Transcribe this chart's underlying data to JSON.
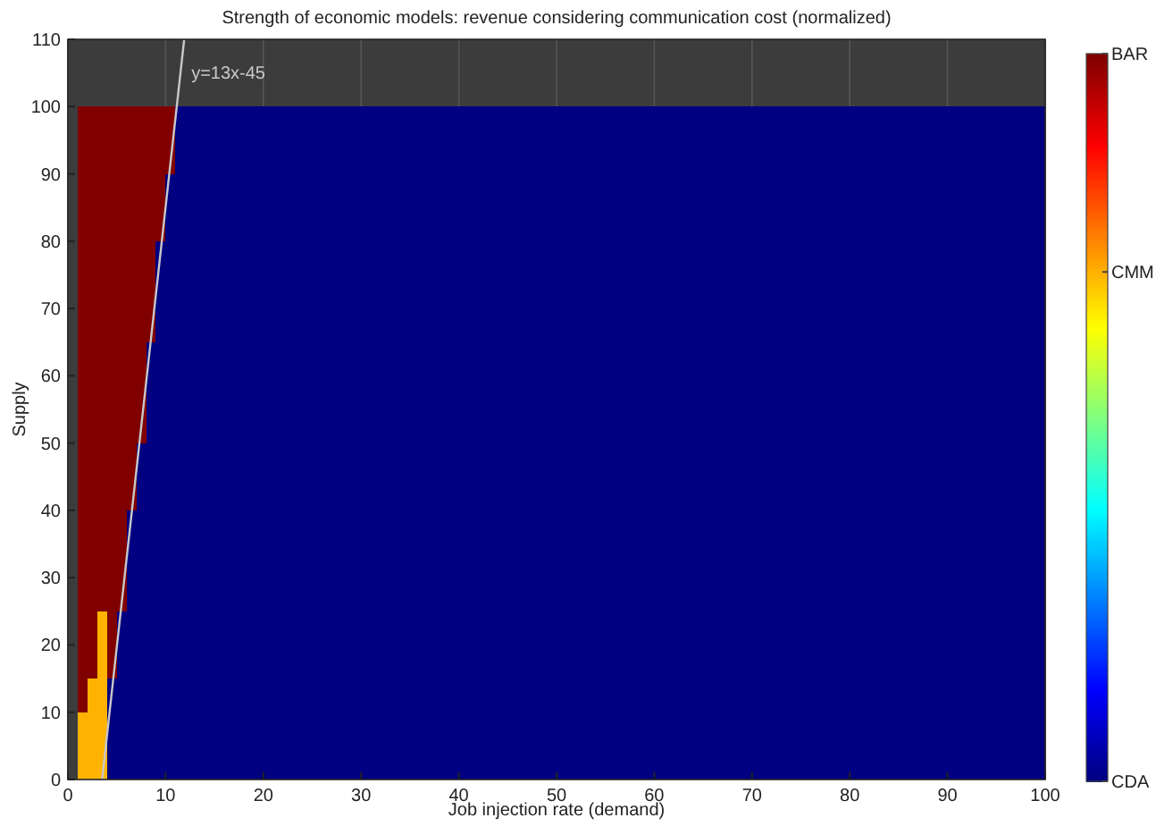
{
  "chart_data": {
    "type": "heatmap",
    "title": "Strength of economic models: revenue considering communication cost (normalized)",
    "xlabel": "Job injection rate (demand)",
    "ylabel": "Supply",
    "x": [
      1.5,
      2.5,
      3.5,
      4.5,
      5.5,
      6.5,
      7.5,
      8.5,
      9.5,
      10.5,
      11.5,
      12.5,
      13.5,
      14.5,
      15.5,
      16.5,
      17.5,
      18.5,
      19.5,
      20.5,
      21.5,
      22.5,
      23.5,
      24.5,
      25.5,
      26.5,
      27.5,
      28.5,
      29.5,
      30.5,
      31.5,
      32.5,
      33.5,
      34.5,
      35.5,
      36.5,
      37.5,
      38.5,
      39.5,
      40.5,
      41.5,
      42.5,
      43.5,
      44.5,
      45.5,
      46.5,
      47.5,
      48.5,
      49.5,
      50.5,
      51.5,
      52.5,
      53.5,
      54.5,
      55.5,
      56.5,
      57.5,
      58.5,
      59.5,
      60.5,
      61.5,
      62.5,
      63.5,
      64.5,
      65.5,
      66.5,
      67.5,
      68.5,
      69.5,
      70.5,
      71.5,
      72.5,
      73.5,
      74.5,
      75.5,
      76.5,
      77.5,
      78.5,
      79.5,
      80.5,
      81.5,
      82.5,
      83.5,
      84.5,
      85.5,
      86.5,
      87.5,
      88.5,
      89.5,
      90.5,
      91.5,
      92.5,
      93.5,
      94.5,
      95.5,
      96.5,
      97.5,
      98.5,
      99.5
    ],
    "y": [
      97.5,
      92.5,
      87.5,
      82.5,
      77.5,
      72.5,
      67.5,
      62.5,
      57.5,
      52.5,
      47.5,
      42.5,
      37.5,
      32.5,
      27.5,
      22.5,
      17.5,
      12.5,
      7.5,
      2.5
    ],
    "cells": [
      [
        1,
        1,
        1,
        1,
        1,
        1,
        1,
        1,
        1,
        1,
        0,
        0,
        0,
        0,
        0,
        0,
        0,
        0,
        0,
        0,
        0,
        0,
        0,
        0,
        0,
        0,
        0,
        0,
        0,
        0,
        0,
        0,
        0,
        0,
        0,
        0,
        0,
        0,
        0,
        0,
        0,
        0,
        0,
        0,
        0,
        0,
        0,
        0,
        0,
        0,
        0,
        0,
        0,
        0,
        0,
        0,
        0,
        0,
        0,
        0,
        0,
        0,
        0,
        0,
        0,
        0,
        0,
        0,
        0,
        0,
        0,
        0,
        0,
        0,
        0,
        0,
        0,
        0,
        0,
        0,
        0,
        0,
        0,
        0,
        0,
        0,
        0,
        0,
        0,
        0,
        0,
        0,
        0,
        0,
        0,
        0,
        0,
        0,
        0
      ],
      [
        1,
        1,
        1,
        1,
        1,
        1,
        1,
        1,
        1,
        1,
        0,
        0,
        0,
        0,
        0,
        0,
        0,
        0,
        0,
        0,
        0,
        0,
        0,
        0,
        0,
        0,
        0,
        0,
        0,
        0,
        0,
        0,
        0,
        0,
        0,
        0,
        0,
        0,
        0,
        0,
        0,
        0,
        0,
        0,
        0,
        0,
        0,
        0,
        0,
        0,
        0,
        0,
        0,
        0,
        0,
        0,
        0,
        0,
        0,
        0,
        0,
        0,
        0,
        0,
        0,
        0,
        0,
        0,
        0,
        0,
        0,
        0,
        0,
        0,
        0,
        0,
        0,
        0,
        0,
        0,
        0,
        0,
        0,
        0,
        0,
        0,
        0,
        0,
        0,
        0,
        0,
        0,
        0,
        0,
        0,
        0,
        0,
        0,
        0
      ],
      [
        1,
        1,
        1,
        1,
        1,
        1,
        1,
        1,
        1,
        0,
        0,
        0,
        0,
        0,
        0,
        0,
        0,
        0,
        0,
        0,
        0,
        0,
        0,
        0,
        0,
        0,
        0,
        0,
        0,
        0,
        0,
        0,
        0,
        0,
        0,
        0,
        0,
        0,
        0,
        0,
        0,
        0,
        0,
        0,
        0,
        0,
        0,
        0,
        0,
        0,
        0,
        0,
        0,
        0,
        0,
        0,
        0,
        0,
        0,
        0,
        0,
        0,
        0,
        0,
        0,
        0,
        0,
        0,
        0,
        0,
        0,
        0,
        0,
        0,
        0,
        0,
        0,
        0,
        0,
        0,
        0,
        0,
        0,
        0,
        0,
        0,
        0,
        0,
        0,
        0,
        0,
        0,
        0,
        0,
        0,
        0,
        0,
        0,
        0
      ],
      [
        1,
        1,
        1,
        1,
        1,
        1,
        1,
        1,
        1,
        0,
        0,
        0,
        0,
        0,
        0,
        0,
        0,
        0,
        0,
        0,
        0,
        0,
        0,
        0,
        0,
        0,
        0,
        0,
        0,
        0,
        0,
        0,
        0,
        0,
        0,
        0,
        0,
        0,
        0,
        0,
        0,
        0,
        0,
        0,
        0,
        0,
        0,
        0,
        0,
        0,
        0,
        0,
        0,
        0,
        0,
        0,
        0,
        0,
        0,
        0,
        0,
        0,
        0,
        0,
        0,
        0,
        0,
        0,
        0,
        0,
        0,
        0,
        0,
        0,
        0,
        0,
        0,
        0,
        0,
        0,
        0,
        0,
        0,
        0,
        0,
        0,
        0,
        0,
        0,
        0,
        0,
        0,
        0,
        0,
        0,
        0,
        0,
        0,
        0
      ],
      [
        1,
        1,
        1,
        1,
        1,
        1,
        1,
        1,
        0,
        0,
        0,
        0,
        0,
        0,
        0,
        0,
        0,
        0,
        0,
        0,
        0,
        0,
        0,
        0,
        0,
        0,
        0,
        0,
        0,
        0,
        0,
        0,
        0,
        0,
        0,
        0,
        0,
        0,
        0,
        0,
        0,
        0,
        0,
        0,
        0,
        0,
        0,
        0,
        0,
        0,
        0,
        0,
        0,
        0,
        0,
        0,
        0,
        0,
        0,
        0,
        0,
        0,
        0,
        0,
        0,
        0,
        0,
        0,
        0,
        0,
        0,
        0,
        0,
        0,
        0,
        0,
        0,
        0,
        0,
        0,
        0,
        0,
        0,
        0,
        0,
        0,
        0,
        0,
        0,
        0,
        0,
        0,
        0,
        0,
        0,
        0,
        0,
        0,
        0
      ],
      [
        1,
        1,
        1,
        1,
        1,
        1,
        1,
        1,
        0,
        0,
        0,
        0,
        0,
        0,
        0,
        0,
        0,
        0,
        0,
        0,
        0,
        0,
        0,
        0,
        0,
        0,
        0,
        0,
        0,
        0,
        0,
        0,
        0,
        0,
        0,
        0,
        0,
        0,
        0,
        0,
        0,
        0,
        0,
        0,
        0,
        0,
        0,
        0,
        0,
        0,
        0,
        0,
        0,
        0,
        0,
        0,
        0,
        0,
        0,
        0,
        0,
        0,
        0,
        0,
        0,
        0,
        0,
        0,
        0,
        0,
        0,
        0,
        0,
        0,
        0,
        0,
        0,
        0,
        0,
        0,
        0,
        0,
        0,
        0,
        0,
        0,
        0,
        0,
        0,
        0,
        0,
        0,
        0,
        0,
        0,
        0,
        0,
        0,
        0
      ],
      [
        1,
        1,
        1,
        1,
        1,
        1,
        1,
        1,
        0,
        0,
        0,
        0,
        0,
        0,
        0,
        0,
        0,
        0,
        0,
        0,
        0,
        0,
        0,
        0,
        0,
        0,
        0,
        0,
        0,
        0,
        0,
        0,
        0,
        0,
        0,
        0,
        0,
        0,
        0,
        0,
        0,
        0,
        0,
        0,
        0,
        0,
        0,
        0,
        0,
        0,
        0,
        0,
        0,
        0,
        0,
        0,
        0,
        0,
        0,
        0,
        0,
        0,
        0,
        0,
        0,
        0,
        0,
        0,
        0,
        0,
        0,
        0,
        0,
        0,
        0,
        0,
        0,
        0,
        0,
        0,
        0,
        0,
        0,
        0,
        0,
        0,
        0,
        0,
        0,
        0,
        0,
        0,
        0,
        0,
        0,
        0,
        0,
        0,
        0
      ],
      [
        1,
        1,
        1,
        1,
        1,
        1,
        1,
        0,
        0,
        0,
        0,
        0,
        0,
        0,
        0,
        0,
        0,
        0,
        0,
        0,
        0,
        0,
        0,
        0,
        0,
        0,
        0,
        0,
        0,
        0,
        0,
        0,
        0,
        0,
        0,
        0,
        0,
        0,
        0,
        0,
        0,
        0,
        0,
        0,
        0,
        0,
        0,
        0,
        0,
        0,
        0,
        0,
        0,
        0,
        0,
        0,
        0,
        0,
        0,
        0,
        0,
        0,
        0,
        0,
        0,
        0,
        0,
        0,
        0,
        0,
        0,
        0,
        0,
        0,
        0,
        0,
        0,
        0,
        0,
        0,
        0,
        0,
        0,
        0,
        0,
        0,
        0,
        0,
        0,
        0,
        0,
        0,
        0,
        0,
        0,
        0,
        0,
        0,
        0
      ],
      [
        1,
        1,
        1,
        1,
        1,
        1,
        1,
        0,
        0,
        0,
        0,
        0,
        0,
        0,
        0,
        0,
        0,
        0,
        0,
        0,
        0,
        0,
        0,
        0,
        0,
        0,
        0,
        0,
        0,
        0,
        0,
        0,
        0,
        0,
        0,
        0,
        0,
        0,
        0,
        0,
        0,
        0,
        0,
        0,
        0,
        0,
        0,
        0,
        0,
        0,
        0,
        0,
        0,
        0,
        0,
        0,
        0,
        0,
        0,
        0,
        0,
        0,
        0,
        0,
        0,
        0,
        0,
        0,
        0,
        0,
        0,
        0,
        0,
        0,
        0,
        0,
        0,
        0,
        0,
        0,
        0,
        0,
        0,
        0,
        0,
        0,
        0,
        0,
        0,
        0,
        0,
        0,
        0,
        0,
        0,
        0,
        0,
        0,
        0
      ],
      [
        1,
        1,
        1,
        1,
        1,
        1,
        1,
        0,
        0,
        0,
        0,
        0,
        0,
        0,
        0,
        0,
        0,
        0,
        0,
        0,
        0,
        0,
        0,
        0,
        0,
        0,
        0,
        0,
        0,
        0,
        0,
        0,
        0,
        0,
        0,
        0,
        0,
        0,
        0,
        0,
        0,
        0,
        0,
        0,
        0,
        0,
        0,
        0,
        0,
        0,
        0,
        0,
        0,
        0,
        0,
        0,
        0,
        0,
        0,
        0,
        0,
        0,
        0,
        0,
        0,
        0,
        0,
        0,
        0,
        0,
        0,
        0,
        0,
        0,
        0,
        0,
        0,
        0,
        0,
        0,
        0,
        0,
        0,
        0,
        0,
        0,
        0,
        0,
        0,
        0,
        0,
        0,
        0,
        0,
        0,
        0,
        0,
        0,
        0
      ],
      [
        1,
        1,
        1,
        1,
        1,
        1,
        0,
        0,
        0,
        0,
        0,
        0,
        0,
        0,
        0,
        0,
        0,
        0,
        0,
        0,
        0,
        0,
        0,
        0,
        0,
        0,
        0,
        0,
        0,
        0,
        0,
        0,
        0,
        0,
        0,
        0,
        0,
        0,
        0,
        0,
        0,
        0,
        0,
        0,
        0,
        0,
        0,
        0,
        0,
        0,
        0,
        0,
        0,
        0,
        0,
        0,
        0,
        0,
        0,
        0,
        0,
        0,
        0,
        0,
        0,
        0,
        0,
        0,
        0,
        0,
        0,
        0,
        0,
        0,
        0,
        0,
        0,
        0,
        0,
        0,
        0,
        0,
        0,
        0,
        0,
        0,
        0,
        0,
        0,
        0,
        0,
        0,
        0,
        0,
        0,
        0,
        0,
        0,
        0
      ],
      [
        1,
        1,
        1,
        1,
        1,
        1,
        0,
        0,
        0,
        0,
        0,
        0,
        0,
        0,
        0,
        0,
        0,
        0,
        0,
        0,
        0,
        0,
        0,
        0,
        0,
        0,
        0,
        0,
        0,
        0,
        0,
        0,
        0,
        0,
        0,
        0,
        0,
        0,
        0,
        0,
        0,
        0,
        0,
        0,
        0,
        0,
        0,
        0,
        0,
        0,
        0,
        0,
        0,
        0,
        0,
        0,
        0,
        0,
        0,
        0,
        0,
        0,
        0,
        0,
        0,
        0,
        0,
        0,
        0,
        0,
        0,
        0,
        0,
        0,
        0,
        0,
        0,
        0,
        0,
        0,
        0,
        0,
        0,
        0,
        0,
        0,
        0,
        0,
        0,
        0,
        0,
        0,
        0,
        0,
        0,
        0,
        0,
        0,
        0
      ],
      [
        1,
        1,
        1,
        1,
        1,
        0,
        0,
        0,
        0,
        0,
        0,
        0,
        0,
        0,
        0,
        0,
        0,
        0,
        0,
        0,
        0,
        0,
        0,
        0,
        0,
        0,
        0,
        0,
        0,
        0,
        0,
        0,
        0,
        0,
        0,
        0,
        0,
        0,
        0,
        0,
        0,
        0,
        0,
        0,
        0,
        0,
        0,
        0,
        0,
        0,
        0,
        0,
        0,
        0,
        0,
        0,
        0,
        0,
        0,
        0,
        0,
        0,
        0,
        0,
        0,
        0,
        0,
        0,
        0,
        0,
        0,
        0,
        0,
        0,
        0,
        0,
        0,
        0,
        0,
        0,
        0,
        0,
        0,
        0,
        0,
        0,
        0,
        0,
        0,
        0,
        0,
        0,
        0,
        0,
        0,
        0,
        0,
        0,
        0
      ],
      [
        1,
        1,
        1,
        1,
        1,
        0,
        0,
        0,
        0,
        0,
        0,
        0,
        0,
        0,
        0,
        0,
        0,
        0,
        0,
        0,
        0,
        0,
        0,
        0,
        0,
        0,
        0,
        0,
        0,
        0,
        0,
        0,
        0,
        0,
        0,
        0,
        0,
        0,
        0,
        0,
        0,
        0,
        0,
        0,
        0,
        0,
        0,
        0,
        0,
        0,
        0,
        0,
        0,
        0,
        0,
        0,
        0,
        0,
        0,
        0,
        0,
        0,
        0,
        0,
        0,
        0,
        0,
        0,
        0,
        0,
        0,
        0,
        0,
        0,
        0,
        0,
        0,
        0,
        0,
        0,
        0,
        0,
        0,
        0,
        0,
        0,
        0,
        0,
        0,
        0,
        0,
        0,
        0,
        0,
        0,
        0,
        0,
        0,
        0
      ],
      [
        1,
        1,
        1,
        1,
        1,
        0,
        0,
        0,
        0,
        0,
        0,
        0,
        0,
        0,
        0,
        0,
        0,
        0,
        0,
        0,
        0,
        0,
        0,
        0,
        0,
        0,
        0,
        0,
        0,
        0,
        0,
        0,
        0,
        0,
        0,
        0,
        0,
        0,
        0,
        0,
        0,
        0,
        0,
        0,
        0,
        0,
        0,
        0,
        0,
        0,
        0,
        0,
        0,
        0,
        0,
        0,
        0,
        0,
        0,
        0,
        0,
        0,
        0,
        0,
        0,
        0,
        0,
        0,
        0,
        0,
        0,
        0,
        0,
        0,
        0,
        0,
        0,
        0,
        0,
        0,
        0,
        0,
        0,
        0,
        0,
        0,
        0,
        0,
        0,
        0,
        0,
        0,
        0,
        0,
        0,
        0,
        0,
        0,
        0
      ],
      [
        1,
        1,
        0.7,
        1,
        0,
        0,
        0,
        0,
        0,
        0,
        0,
        0,
        0,
        0,
        0,
        0,
        0,
        0,
        0,
        0,
        0,
        0,
        0,
        0,
        0,
        0,
        0,
        0,
        0,
        0,
        0,
        0,
        0,
        0,
        0,
        0,
        0,
        0,
        0,
        0,
        0,
        0,
        0,
        0,
        0,
        0,
        0,
        0,
        0,
        0,
        0,
        0,
        0,
        0,
        0,
        0,
        0,
        0,
        0,
        0,
        0,
        0,
        0,
        0,
        0,
        0,
        0,
        0,
        0,
        0,
        0,
        0,
        0,
        0,
        0,
        0,
        0,
        0,
        0,
        0,
        0,
        0,
        0,
        0,
        0,
        0,
        0,
        0,
        0,
        0,
        0,
        0,
        0,
        0,
        0,
        0,
        0,
        0,
        0
      ],
      [
        1,
        1,
        0.7,
        1,
        0,
        0,
        0,
        0,
        0,
        0,
        0,
        0,
        0,
        0,
        0,
        0,
        0,
        0,
        0,
        0,
        0,
        0,
        0,
        0,
        0,
        0,
        0,
        0,
        0,
        0,
        0,
        0,
        0,
        0,
        0,
        0,
        0,
        0,
        0,
        0,
        0,
        0,
        0,
        0,
        0,
        0,
        0,
        0,
        0,
        0,
        0,
        0,
        0,
        0,
        0,
        0,
        0,
        0,
        0,
        0,
        0,
        0,
        0,
        0,
        0,
        0,
        0,
        0,
        0,
        0,
        0,
        0,
        0,
        0,
        0,
        0,
        0,
        0,
        0,
        0,
        0,
        0,
        0,
        0,
        0,
        0,
        0,
        0,
        0,
        0,
        0,
        0,
        0,
        0,
        0,
        0,
        0,
        0,
        0
      ],
      [
        1,
        0.7,
        0.7,
        0,
        0,
        0,
        0,
        0,
        0,
        0,
        0,
        0,
        0,
        0,
        0,
        0,
        0,
        0,
        0,
        0,
        0,
        0,
        0,
        0,
        0,
        0,
        0,
        0,
        0,
        0,
        0,
        0,
        0,
        0,
        0,
        0,
        0,
        0,
        0,
        0,
        0,
        0,
        0,
        0,
        0,
        0,
        0,
        0,
        0,
        0,
        0,
        0,
        0,
        0,
        0,
        0,
        0,
        0,
        0,
        0,
        0,
        0,
        0,
        0,
        0,
        0,
        0,
        0,
        0,
        0,
        0,
        0,
        0,
        0,
        0,
        0,
        0,
        0,
        0,
        0,
        0,
        0,
        0,
        0,
        0,
        0,
        0,
        0,
        0,
        0,
        0,
        0,
        0,
        0,
        0,
        0,
        0,
        0,
        0
      ],
      [
        0.7,
        0.7,
        0.7,
        0,
        0,
        0,
        0,
        0,
        0,
        0,
        0,
        0,
        0,
        0,
        0,
        0,
        0,
        0,
        0,
        0,
        0,
        0,
        0,
        0,
        0,
        0,
        0,
        0,
        0,
        0,
        0,
        0,
        0,
        0,
        0,
        0,
        0,
        0,
        0,
        0,
        0,
        0,
        0,
        0,
        0,
        0,
        0,
        0,
        0,
        0,
        0,
        0,
        0,
        0,
        0,
        0,
        0,
        0,
        0,
        0,
        0,
        0,
        0,
        0,
        0,
        0,
        0,
        0,
        0,
        0,
        0,
        0,
        0,
        0,
        0,
        0,
        0,
        0,
        0,
        0,
        0,
        0,
        0,
        0,
        0,
        0,
        0,
        0,
        0,
        0,
        0,
        0,
        0,
        0,
        0,
        0,
        0,
        0,
        0
      ],
      [
        0.7,
        0.7,
        0.7,
        0,
        0,
        0,
        0,
        0,
        0,
        0,
        0,
        0,
        0,
        0,
        0,
        0,
        0,
        0,
        0,
        0,
        0,
        0,
        0,
        0,
        0,
        0,
        0,
        0,
        0,
        0,
        0,
        0,
        0,
        0,
        0,
        0,
        0,
        0,
        0,
        0,
        0,
        0,
        0,
        0,
        0,
        0,
        0,
        0,
        0,
        0,
        0,
        0,
        0,
        0,
        0,
        0,
        0,
        0,
        0,
        0,
        0,
        0,
        0,
        0,
        0,
        0,
        0,
        0,
        0,
        0,
        0,
        0,
        0,
        0,
        0,
        0,
        0,
        0,
        0,
        0,
        0,
        0,
        0,
        0,
        0,
        0,
        0,
        0,
        0,
        0,
        0,
        0,
        0,
        0,
        0,
        0,
        0,
        0,
        0
      ]
    ],
    "clim": [
      0,
      1
    ],
    "cticks": [
      {
        "value": 0,
        "label": "CDA"
      },
      {
        "value": 0.7,
        "label": "CMM"
      },
      {
        "value": 1,
        "label": "BAR"
      }
    ],
    "series": [
      {
        "type": "line",
        "name": "y=13x-45",
        "color": "#c8c8c8",
        "x": [
          3.5,
          11.9
        ],
        "values": [
          0,
          110
        ]
      }
    ],
    "xlim": [
      0,
      100
    ],
    "xticks": [
      0,
      10,
      20,
      30,
      40,
      50,
      60,
      70,
      80,
      90,
      100
    ],
    "ylim": [
      0,
      110
    ],
    "yticks": [
      0,
      10,
      20,
      30,
      40,
      50,
      60,
      70,
      80,
      90,
      100,
      110
    ],
    "grid": "x"
  }
}
